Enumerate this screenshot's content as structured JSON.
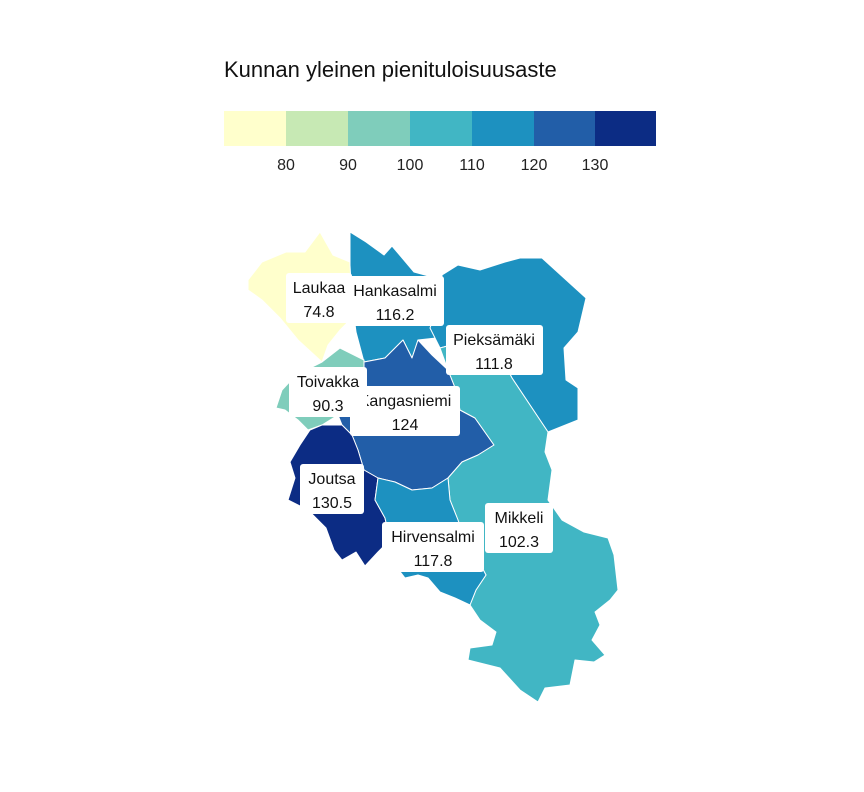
{
  "title": "Kunnan yleinen pienituloisuusaste",
  "legend": {
    "ticks": [
      "80",
      "90",
      "100",
      "110",
      "120",
      "130"
    ],
    "colors": [
      "#ffffcc",
      "#c7e9b4",
      "#7fcdbb",
      "#41b6c4",
      "#1d91c0",
      "#225ea8",
      "#0c2c84"
    ]
  },
  "regions": [
    {
      "name": "Laukaa",
      "value": "74.8",
      "color": "#ffffcc"
    },
    {
      "name": "Hankasalmi",
      "value": "116.2",
      "color": "#1d91c0"
    },
    {
      "name": "Pieksämäki",
      "value": "111.8",
      "color": "#1d91c0"
    },
    {
      "name": "Toivakka",
      "value": "90.3",
      "color": "#7fcdbb"
    },
    {
      "name": "Kangasniemi",
      "value": "124",
      "color": "#225ea8"
    },
    {
      "name": "Joutsa",
      "value": "130.5",
      "color": "#0c2c84"
    },
    {
      "name": "Mikkeli",
      "value": "102.3",
      "color": "#41b6c4"
    },
    {
      "name": "Hirvensalmi",
      "value": "117.8",
      "color": "#1d91c0"
    }
  ]
}
